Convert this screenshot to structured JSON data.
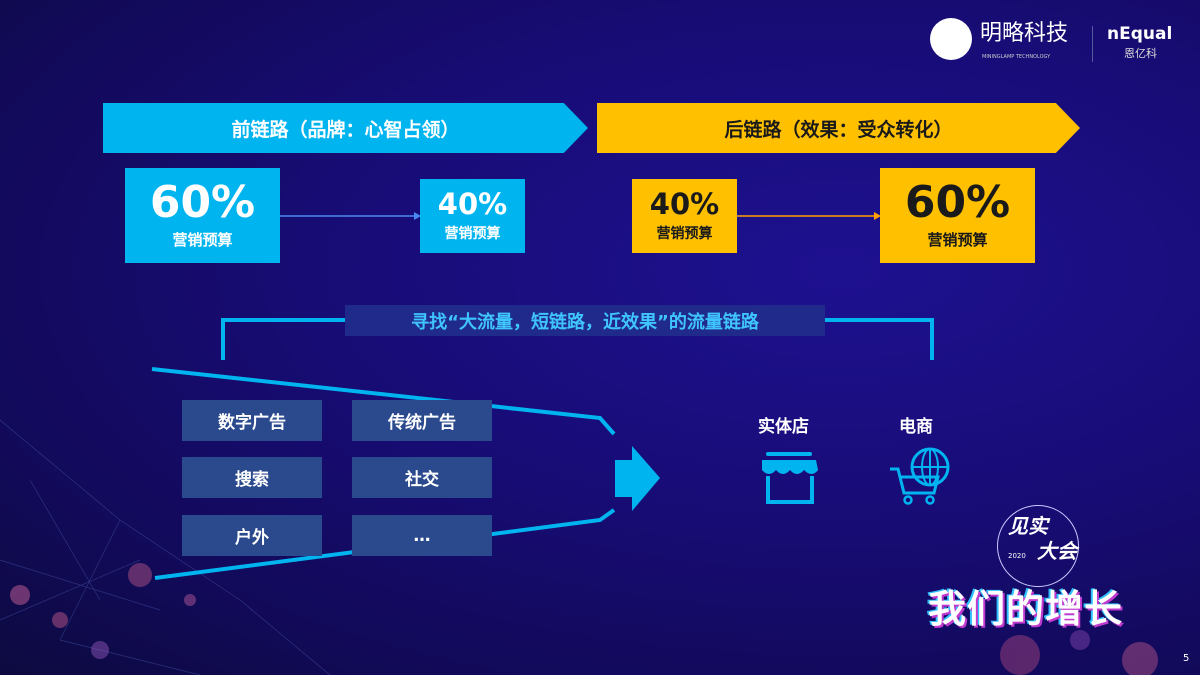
{
  "header": {
    "logo_company": "明略科技",
    "logo_company_sub": "MININGLAMP TECHNOLOGY",
    "logo_partner": "nEqual",
    "logo_partner_sub": "恩亿科"
  },
  "colors": {
    "blue": "#00b4f0",
    "yellow": "#ffc000",
    "background": "#180c78",
    "box": "#2b4a8e"
  },
  "front_chain": {
    "title": "前链路（品牌：心智占领）",
    "from": {
      "value": "60%",
      "label": "营销预算"
    },
    "to": {
      "value": "40%",
      "label": "营销预算"
    }
  },
  "back_chain": {
    "title": "后链路（效果：受众转化）",
    "from": {
      "value": "40%",
      "label": "营销预算"
    },
    "to": {
      "value": "60%",
      "label": "营销预算"
    }
  },
  "bracket_title": "寻找“大流量，短链路，近效果”的流量链路",
  "channels": [
    "数字广告",
    "传统广告",
    "搜索",
    "社交",
    "户外",
    "…"
  ],
  "destinations": [
    {
      "label": "实体店",
      "icon": "storefront-icon"
    },
    {
      "label": "电商",
      "icon": "globe-cart-icon"
    }
  ],
  "event_logo": {
    "line1": "见实",
    "line2": "大会",
    "year": "2020",
    "slogan": "我们的增长"
  },
  "page_number": "5"
}
